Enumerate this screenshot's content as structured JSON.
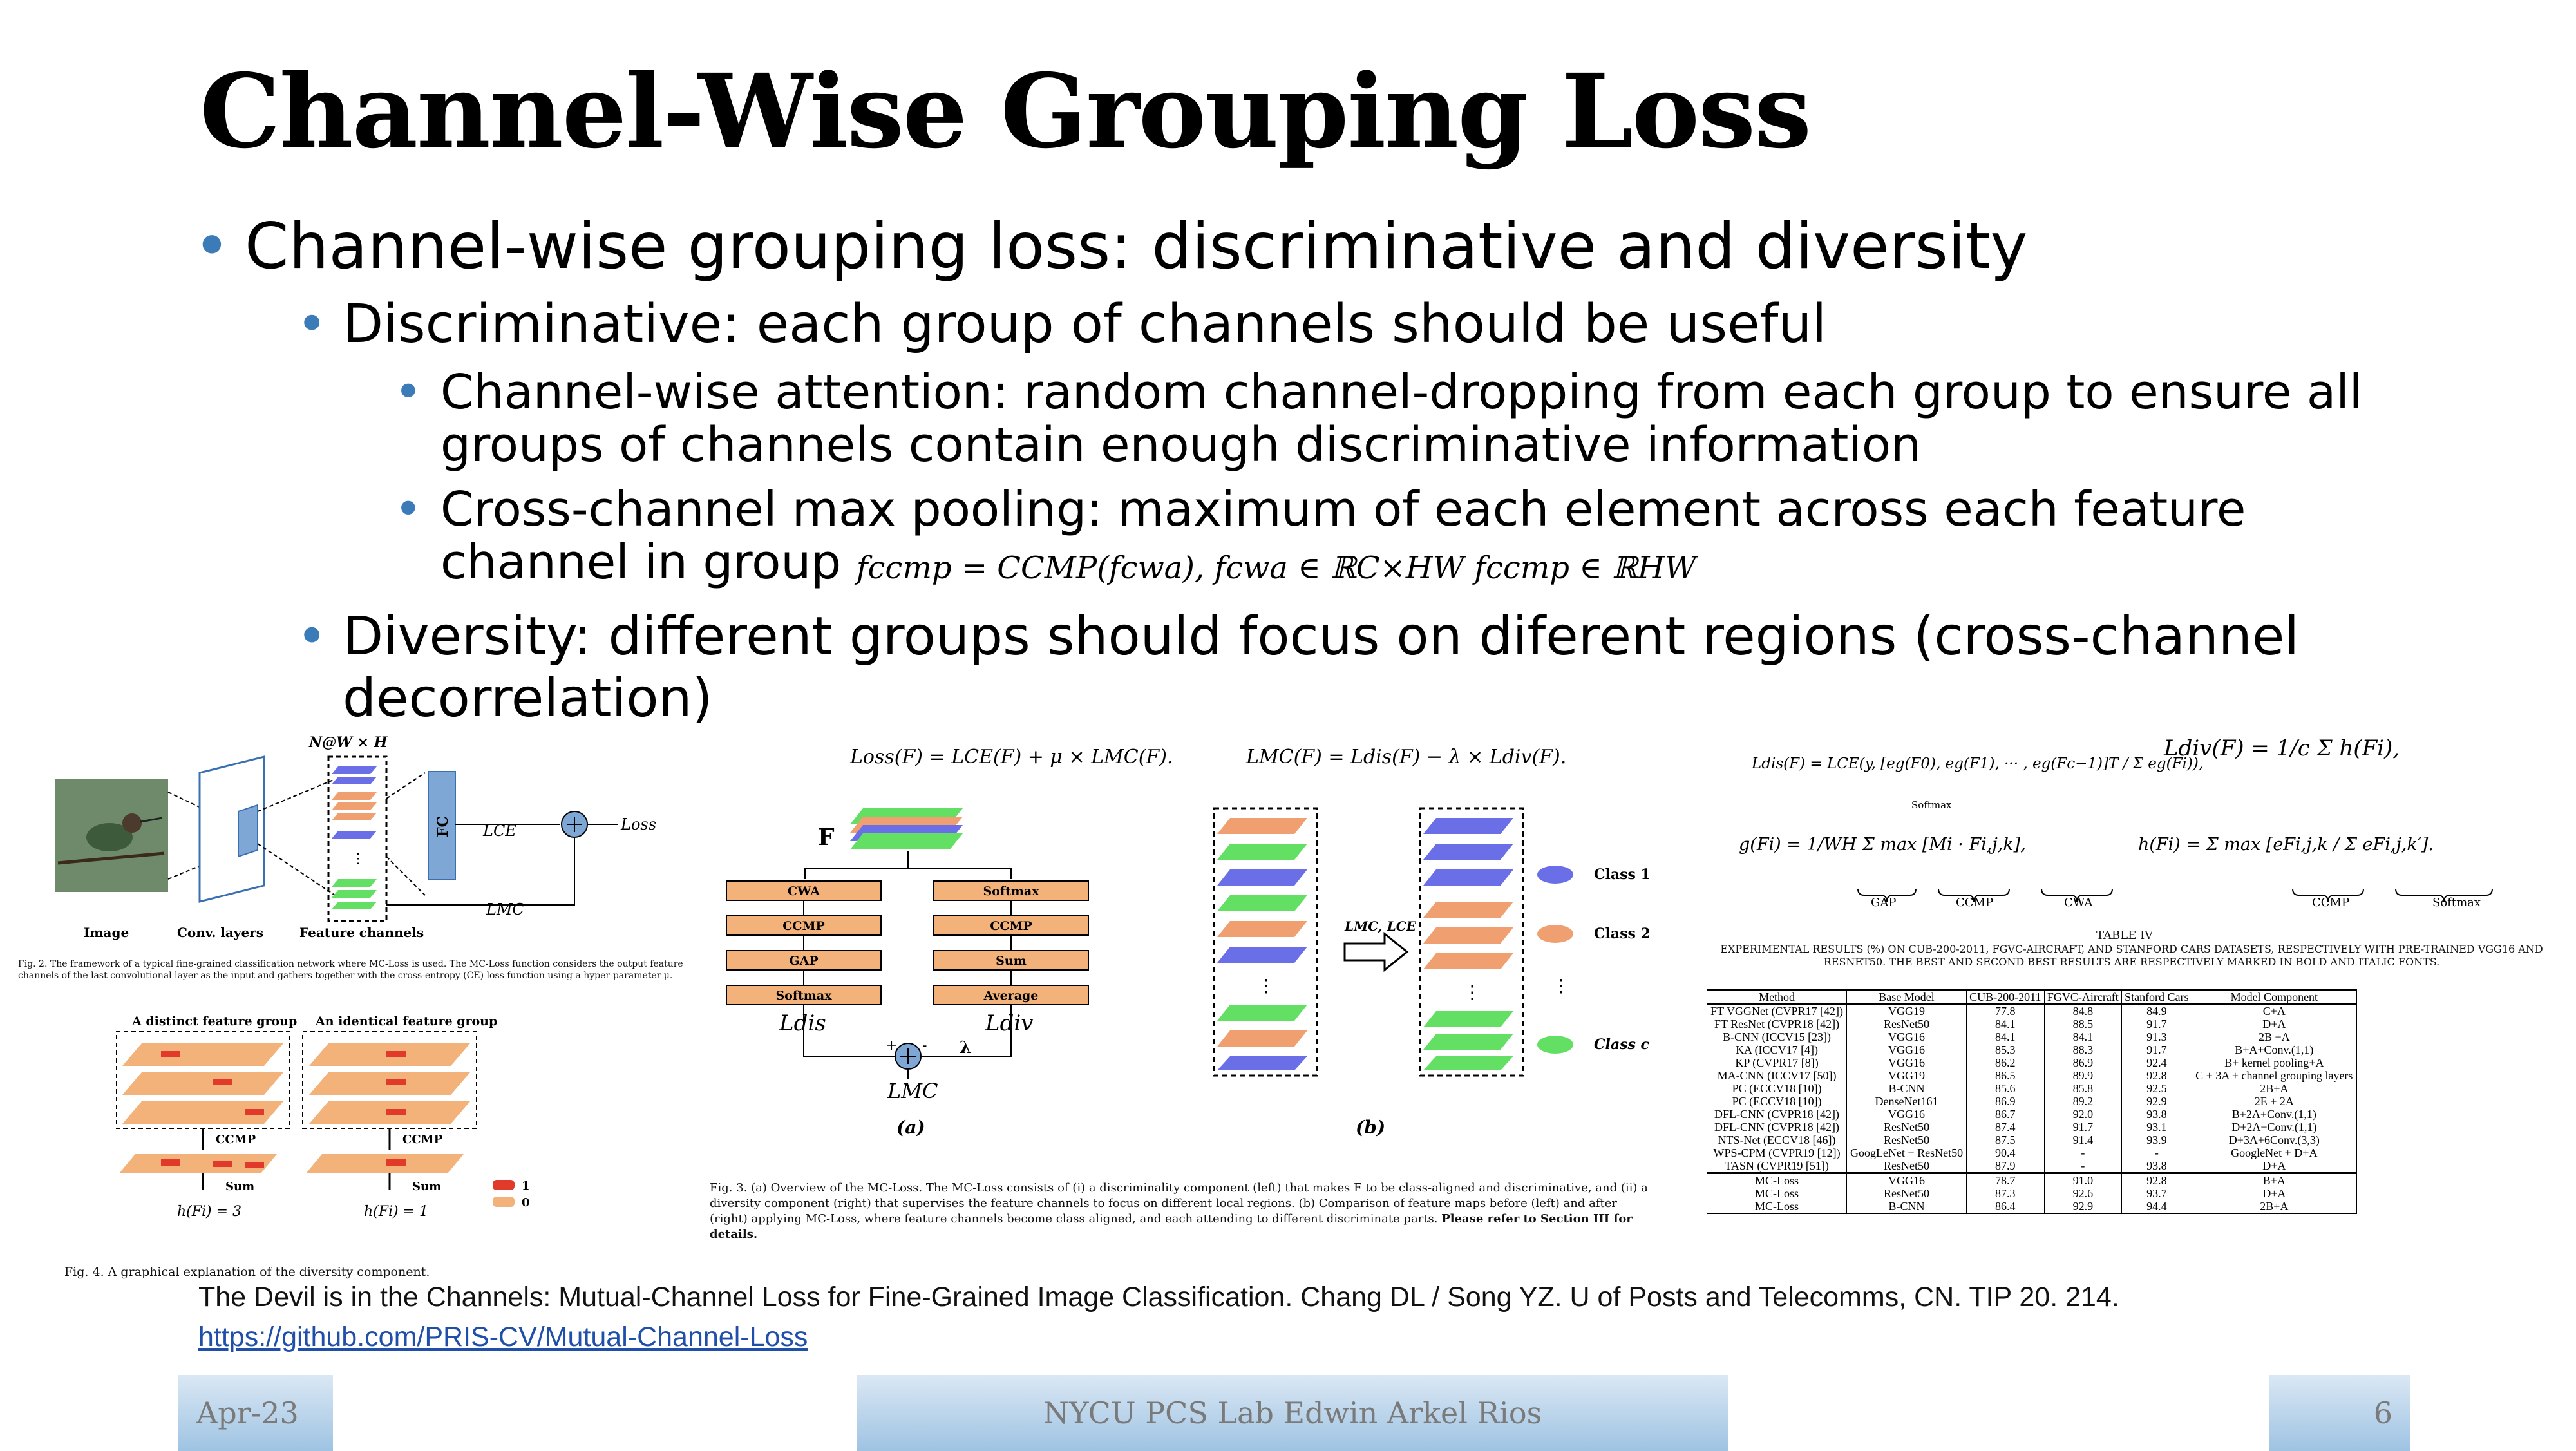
{
  "title": "Channel-Wise Grouping Loss",
  "bullets": {
    "main": "Channel-wise grouping loss: discriminative and diversity",
    "discriminative": "Discriminative: each group of channels should be useful",
    "attention": "Channel-wise attention: random channel-dropping from each group to ensure all groups of channels contain enough discriminative information",
    "ccmp_text": "Cross-channel max pooling: maximum of each element across each feature channel in group",
    "ccmp_formula": "fccmp = CCMP(fcwa), fcwa ∈ ℝC×HW fccmp ∈ ℝHW",
    "diversity": "Diversity: different groups should focus on diferent regions (cross-channel decorrelation)"
  },
  "fig2": {
    "label_top": "N@W × H",
    "fc": "FC",
    "lce": "LCE",
    "lmc": "LMC",
    "loss": "Loss",
    "image_label": "Image",
    "conv_label": "Conv. layers",
    "feature_label": "Feature channels",
    "caption": "Fig. 2. The framework of a typical fine-grained classification network where MC-Loss is used. The MC-Loss function considers the output feature channels of the last convolutional layer as the input and gathers together with the cross-entropy (CE) loss function using a hyper-parameter μ."
  },
  "fig4": {
    "left_title": "A distinct feature group",
    "right_title": "An identical feature group",
    "ccmp": "CCMP",
    "sum": "Sum",
    "left_h": "h(Fi) = 3",
    "right_h": "h(Fi) = 1",
    "legend_1": "1",
    "legend_0": "0",
    "caption": "Fig. 4. A graphical explanation of the diversity component."
  },
  "fig3": {
    "eq1": "Loss(F) = LCE(F) + μ × LMC(F).",
    "eq2": "LMC(F) = Ldis(F) − λ × Ldiv(F).",
    "F": "F",
    "left_boxes": [
      "CWA",
      "CCMP",
      "GAP",
      "Softmax"
    ],
    "right_boxes": [
      "Softmax",
      "CCMP",
      "Sum",
      "Average"
    ],
    "ldis": "Ldis",
    "ldiv": "Ldiv",
    "lambda": "λ",
    "lmc": "LMC",
    "plus": "+",
    "minus": "-",
    "a": "(a)",
    "b": "(b)",
    "arrow_label": "LMC, LCE",
    "class1": "Class 1",
    "class2": "Class 2",
    "classc": "Class c",
    "caption": "Fig. 3. (a) Overview of the MC-Loss. The MC-Loss consists of (i) a discriminality component (left) that makes F to be class-aligned and discriminative, and (ii) a diversity component (right) that supervises the feature channels to focus on different local regions. (b) Comparison of feature maps before (left) and after (right) applying MC-Loss, where feature channels become class aligned, and each attending to different discriminate parts.",
    "caption_bold": "Please refer to Section III for details."
  },
  "equations": {
    "ldis": "Ldis(F) = LCE(y, [eg(F0), eg(F1), ··· , eg(Fc−1)]T / Σ eg(Fi)),",
    "softmax_label": "Softmax",
    "ldiv": "Ldiv(F) = 1/c Σ h(Fi),",
    "g": "g(Fi) = 1/WH Σ max [Mi · Fi,j,k],",
    "h": "h(Fi) = Σ max [eFi,j,k / Σ eFi,j,k′].",
    "gap": "GAP",
    "ccmp": "CCMP",
    "cwa": "CWA",
    "ccmp2": "CCMP",
    "softmax2": "Softmax"
  },
  "table": {
    "caption_title": "TABLE IV",
    "caption": "EXPERIMENTAL RESULTS (%) ON CUB-200-2011, FGVC-AIRCRAFT, AND STANFORD CARS DATASETS, RESPECTIVELY WITH PRE-TRAINED VGG16 AND RESNET50. THE BEST AND SECOND BEST RESULTS ARE RESPECTIVELY MARKED IN BOLD AND ITALIC FONTS.",
    "columns": [
      "Method",
      "Base Model",
      "CUB-200-2011",
      "FGVC-Aircraft",
      "Stanford Cars",
      "Model Component"
    ],
    "rows": [
      [
        "FT VGGNet (CVPR17 [42])",
        "VGG19",
        "77.8",
        "84.8",
        "84.9",
        "C+A"
      ],
      [
        "FT ResNet (CVPR18 [42])",
        "ResNet50",
        "84.1",
        "88.5",
        "91.7",
        "D+A"
      ],
      [
        "B-CNN (ICCV15 [23])",
        "VGG16",
        "84.1",
        "84.1",
        "91.3",
        "2B +A"
      ],
      [
        "KA (ICCV17 [4])",
        "VGG16",
        "85.3",
        "88.3",
        "91.7",
        "B+A+Conv.(1,1)"
      ],
      [
        "KP (CVPR17 [8])",
        "VGG16",
        "86.2",
        "86.9",
        "92.4",
        "B+ kernel pooling+A"
      ],
      [
        "MA-CNN (ICCV17 [50])",
        "VGG19",
        "86.5",
        "89.9",
        "92.8",
        "C + 3A + channel grouping layers"
      ],
      [
        "PC (ECCV18 [10])",
        "B-CNN",
        "85.6",
        "85.8",
        "92.5",
        "2B+A"
      ],
      [
        "PC (ECCV18 [10])",
        "DenseNet161",
        "86.9",
        "89.2",
        "92.9",
        "2E + 2A"
      ],
      [
        "DFL-CNN (CVPR18 [42])",
        "VGG16",
        "86.7",
        "92.0",
        "93.8",
        "B+2A+Conv.(1,1)"
      ],
      [
        "DFL-CNN (CVPR18 [42])",
        "ResNet50",
        "87.4",
        "91.7",
        "93.1",
        "D+2A+Conv.(1,1)"
      ],
      [
        "NTS-Net (ECCV18 [46])",
        "ResNet50",
        "87.5",
        "91.4",
        "93.9",
        "D+3A+6Conv.(3,3)"
      ],
      [
        "WPS-CPM (CVPR19 [12])",
        "GoogLeNet + ResNet50",
        "90.4",
        "-",
        "-",
        "GoogleNet + D+A"
      ],
      [
        "TASN (CVPR19 [51])",
        "ResNet50",
        "87.9",
        "-",
        "93.8",
        "D+A"
      ]
    ],
    "mc_rows": [
      [
        "MC-Loss",
        "VGG16",
        "78.7",
        "91.0",
        "92.8",
        "B+A"
      ],
      [
        "MC-Loss",
        "ResNet50",
        "87.3",
        "92.6",
        "93.7",
        "D+A"
      ],
      [
        "MC-Loss",
        "B-CNN",
        "86.4",
        "92.9",
        "94.4",
        "2B+A"
      ]
    ]
  },
  "citation": "The Devil is in the Channels: Mutual-Channel Loss for Fine-Grained Image Classification. Chang DL / Song YZ. U of Posts and Telecomms, CN. TIP 20. 214.",
  "link": "https://github.com/PRIS-CV/Mutual-Channel-Loss",
  "footer": {
    "date": "Apr-23",
    "center": "NYCU PCS Lab Edwin Arkel Rios",
    "page": "6"
  },
  "colors": {
    "bullet": "#3a7bb8",
    "box_orange": "#f2b27a",
    "fc_blue": "#7fa7d6",
    "class_blue": "#6a6fe8",
    "class_orange": "#f0a070",
    "class_green": "#63e063"
  }
}
